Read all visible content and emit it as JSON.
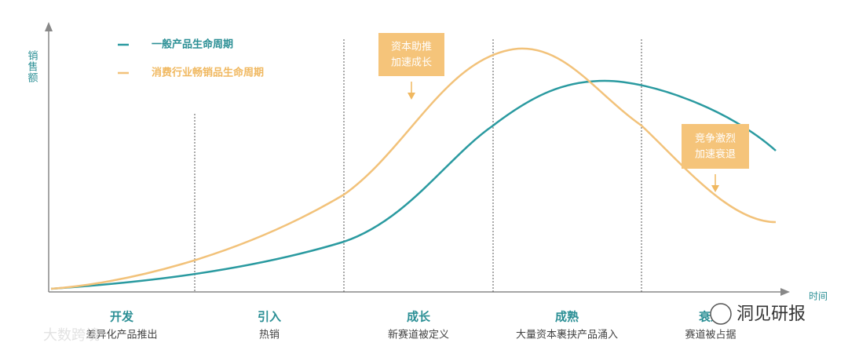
{
  "axes": {
    "y_label": [
      "销",
      "售",
      "额"
    ],
    "x_label": "时间"
  },
  "legend": [
    "一般产品生命周期",
    "消费行业畅销品生命周期"
  ],
  "annotations": [
    [
      "资本助推",
      "加速成长"
    ],
    [
      "竞争激烈",
      "加速衰退"
    ]
  ],
  "stages": [
    {
      "title": "开发",
      "subtitle": "差异化产品推出"
    },
    {
      "title": "引入",
      "subtitle": "热销"
    },
    {
      "title": "成长",
      "subtitle": "新赛道被定义"
    },
    {
      "title": "成熟",
      "subtitle": "大量资本裹挟产品涌入"
    },
    {
      "title": "衰退",
      "subtitle": "赛道被占据"
    }
  ],
  "watermarks": [
    "大数跨境",
    "洞见研报"
  ]
}
